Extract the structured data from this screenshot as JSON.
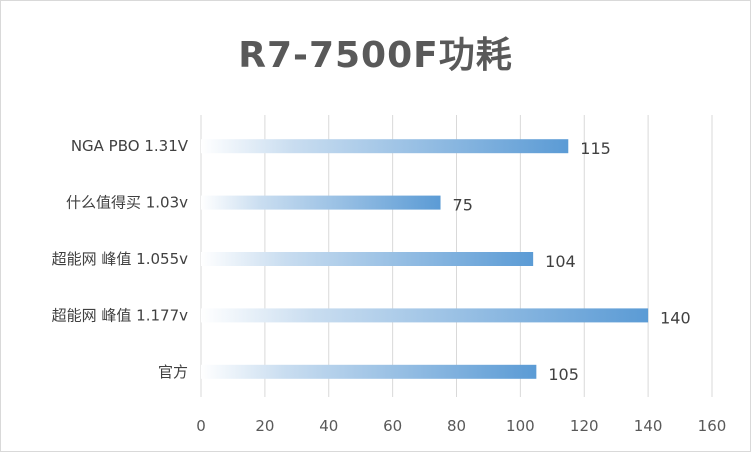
{
  "chart_data": {
    "type": "bar",
    "orientation": "horizontal",
    "title": "R7-7500F功耗",
    "categories": [
      "NGA PBO 1.31V",
      "什么值得买 1.03v",
      "超能网 峰值 1.055v",
      "超能网 峰值 1.177v",
      "官方"
    ],
    "values": [
      115,
      75,
      104,
      140,
      105
    ],
    "xlim": [
      0,
      160
    ],
    "xticks": [
      0,
      20,
      40,
      60,
      80,
      100,
      120,
      140,
      160
    ],
    "xlabel": "",
    "ylabel": "",
    "grid": "vertical",
    "legend": "none",
    "bar_gradient": [
      "#ffffff",
      "#5b9bd5"
    ],
    "grid_color": "#d9d9d9"
  }
}
